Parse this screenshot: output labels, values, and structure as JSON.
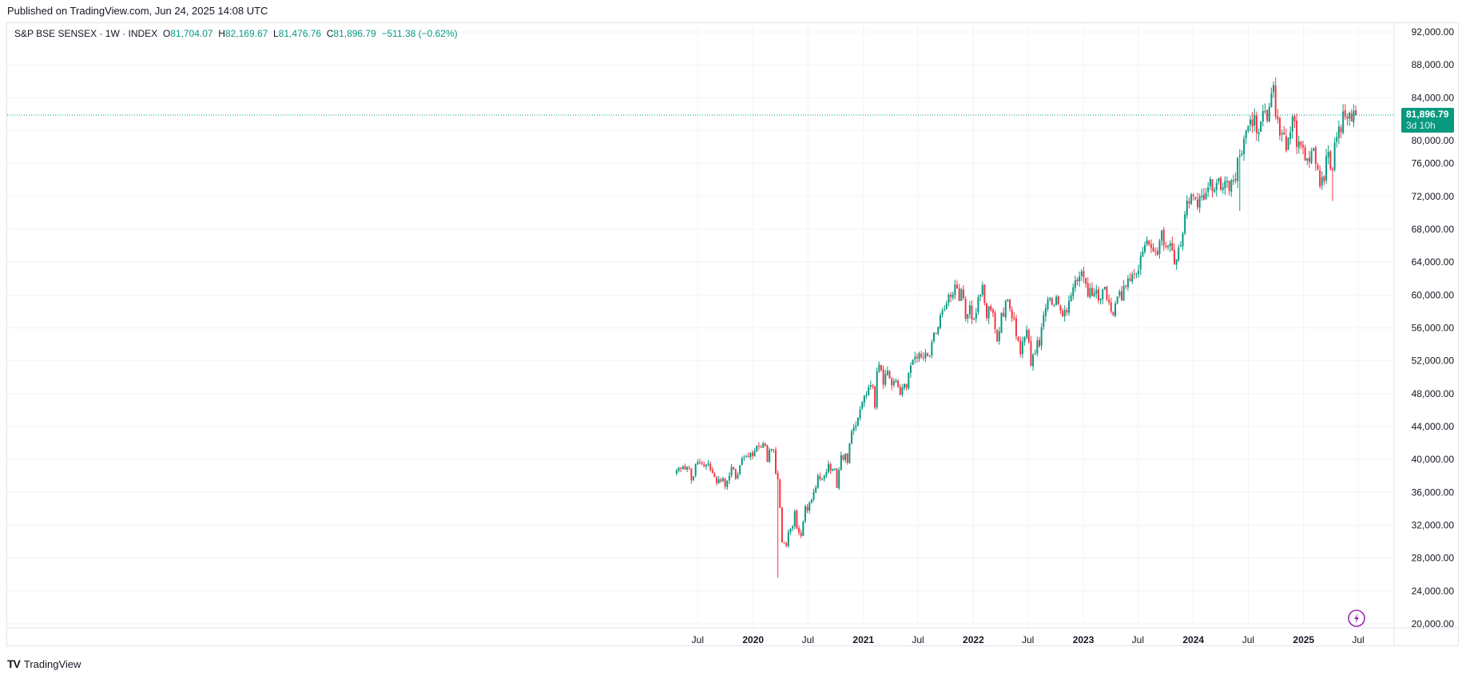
{
  "header": {
    "published": "Published on TradingView.com, Jun 24, 2025 14:08 UTC"
  },
  "legend": {
    "symbol": "S&P BSE SENSEX · 1W · INDEX",
    "o_label": "O",
    "o": "81,704.07",
    "h_label": "H",
    "h": "82,169.67",
    "l_label": "L",
    "l": "81,476.76",
    "c_label": "C",
    "c": "81,896.79",
    "change": "−511.38 (−0.62%)"
  },
  "price_label": {
    "value": "81,896.79",
    "countdown": "3d 10h"
  },
  "footer": {
    "brand": "TradingView",
    "logo_icon": "tradingview-logo-icon"
  },
  "icons": {
    "lightning": "lightning-icon"
  },
  "colors": {
    "up": "#089981",
    "down": "#f23645",
    "price_line": "#089981",
    "lightning": "#9c27b0"
  },
  "chart_data": {
    "type": "candlestick",
    "interval": "1W",
    "grid": true,
    "last_week": "2025-06-23",
    "last_close": 81896.79,
    "y_ticks": [
      "92,000.00",
      "88,000.00",
      "84,000.00",
      "80,000.00",
      "76,000.00",
      "72,000.00",
      "68,000.00",
      "64,000.00",
      "60,000.00",
      "56,000.00",
      "52,000.00",
      "48,000.00",
      "44,000.00",
      "40,000.00",
      "36,000.00",
      "32,000.00",
      "28,000.00",
      "24,000.00",
      "20,000.00"
    ],
    "ylim": [
      20000,
      92000
    ],
    "x_ticks": [
      {
        "label": "Jul",
        "date": "2019-07-01"
      },
      {
        "label": "2020",
        "date": "2020-01-01"
      },
      {
        "label": "Jul",
        "date": "2020-07-01"
      },
      {
        "label": "2021",
        "date": "2021-01-01"
      },
      {
        "label": "Jul",
        "date": "2021-07-01"
      },
      {
        "label": "2022",
        "date": "2022-01-01"
      },
      {
        "label": "Jul",
        "date": "2022-07-01"
      },
      {
        "label": "2023",
        "date": "2023-01-01"
      },
      {
        "label": "Jul",
        "date": "2023-07-01"
      },
      {
        "label": "2024",
        "date": "2024-01-01"
      },
      {
        "label": "Jul",
        "date": "2024-07-01"
      },
      {
        "label": "2025",
        "date": "2025-01-01"
      },
      {
        "label": "Jul",
        "date": "2025-07-01"
      }
    ],
    "closes": [
      38670,
      39000,
      38860,
      39140,
      38770,
      39070,
      38960,
      37460,
      37930,
      39430,
      39710,
      39610,
      39450,
      39190,
      39390,
      39510,
      38730,
      38340,
      37880,
      37120,
      37580,
      37350,
      37700,
      36700,
      37380,
      38010,
      39090,
      38820,
      37670,
      38130,
      39300,
      40160,
      40320,
      40360,
      40350,
      40790,
      40445,
      41010,
      41680,
      41570,
      41460,
      41950,
      41680,
      39740,
      41140,
      41260,
      41170,
      38300,
      37570,
      34100,
      29920,
      29810,
      29470,
      31160,
      31590,
      31860,
      33720,
      31640,
      31100,
      30670,
      32420,
      34290,
      33780,
      34730,
      35170,
      36020,
      36590,
      38040,
      37610,
      37600,
      38040,
      38430,
      39470,
      38630,
      38850,
      38850,
      36550,
      38700,
      40510,
      40000,
      40690,
      39610,
      41890,
      43440,
      43880,
      44150,
      45080,
      46100,
      46960,
      47750,
      47870,
      48780,
      49030,
      48880,
      46290,
      50730,
      51540,
      50890,
      49100,
      50400,
      50790,
      49860,
      49000,
      49510,
      49590,
      48830,
      47880,
      48780,
      49210,
      48730,
      50540,
      51420,
      52100,
      52470,
      52340,
      52920,
      52480,
      52390,
      52980,
      52590,
      52650,
      54280,
      55440,
      55330,
      56120,
      57550,
      58130,
      58300,
      59010,
      60050,
      59770,
      60060,
      61300,
      60820,
      59300,
      60690,
      59640,
      57110,
      57700,
      58780,
      57010,
      57120,
      57800,
      59740,
      60000,
      61220,
      59040,
      57200,
      58640,
      58150,
      57830,
      55860,
      54330,
      55550,
      57860,
      57360,
      59280,
      59450,
      58340,
      57200,
      57060,
      55000,
      54470,
      52790,
      54320,
      54880,
      55770,
      54300,
      51360,
      52730,
      52910,
      54480,
      53760,
      56070,
      57570,
      58390,
      59460,
      59650,
      58830,
      58800,
      59800,
      58840,
      58100,
      57400,
      58190,
      57920,
      59300,
      59960,
      60950,
      61800,
      61660,
      62290,
      62870,
      62180,
      61340,
      59850,
      60840,
      59900,
      60260,
      60620,
      59330,
      59550,
      60680,
      61000,
      59460,
      59130,
      57990,
      57530,
      58990,
      59830,
      60430,
      59410,
      61110,
      61050,
      62020,
      61730,
      62500,
      62550,
      62630,
      62980,
      64720,
      65280,
      66060,
      66680,
      66160,
      65720,
      65320,
      65390,
      64890,
      66600,
      67840,
      66010,
      65830,
      65990,
      66280,
      65400,
      63780,
      64360,
      65790,
      65970,
      67480,
      69830,
      71480,
      71110,
      72240,
      72030,
      71680,
      70700,
      71940,
      72090,
      71600,
      72430,
      73140,
      74120,
      72640,
      72830,
      73650,
      74250,
      72800,
      73090,
      73880,
      73870,
      72660,
      73920,
      74000,
      73960,
      76690,
      76990,
      77210,
      79030,
      80000,
      80600,
      81330,
      80500,
      81900,
      79700,
      79800,
      81090,
      82370,
      82360,
      81180,
      82890,
      84540,
      85570,
      81690,
      81380,
      79400,
      79720,
      79490,
      77580,
      79120,
      79800,
      81700,
      81130,
      78040,
      78700,
      78250,
      77960,
      76380,
      76620,
      76190,
      77500,
      77860,
      75940,
      75310,
      73200,
      74330,
      73830,
      76900,
      77410,
      75360,
      75160,
      78550,
      79210,
      80500,
      79800,
      82330,
      81720,
      81450,
      82190,
      81120,
      82400,
      81896.79
    ],
    "notable_lows": [
      {
        "week": "2020-03-23",
        "low": 25638
      },
      {
        "week": "2024-06-03",
        "low": 70234
      },
      {
        "week": "2025-04-07",
        "low": 71425
      }
    ],
    "notable_highs": [
      {
        "week": "2024-09-23",
        "high": 85978
      }
    ]
  }
}
